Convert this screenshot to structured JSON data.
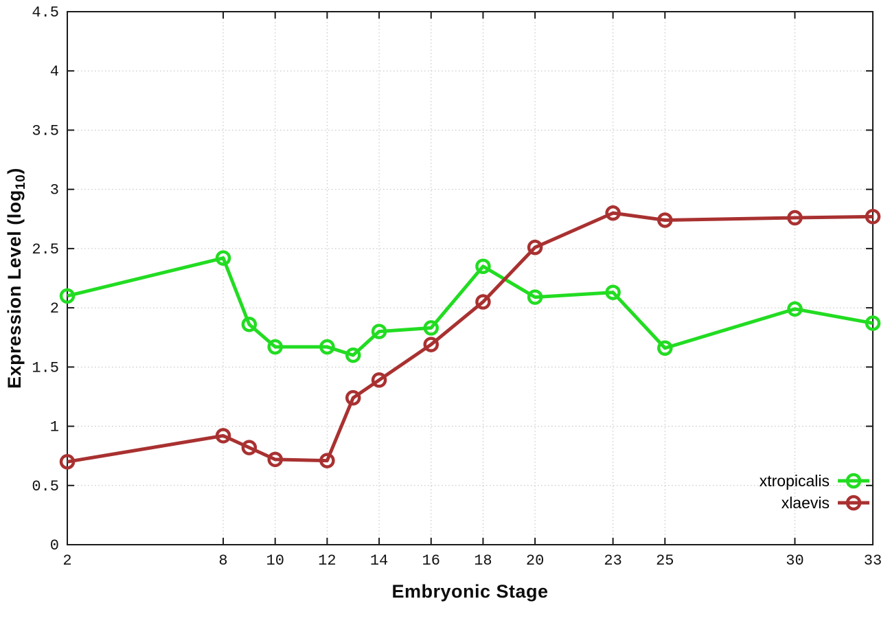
{
  "figure": {
    "background": "#ffffff",
    "text_color": "#0d0d0d"
  },
  "chart_data": {
    "type": "line",
    "title": "",
    "xlabel": "Embryonic Stage",
    "ylabel": "Expression Level (log10)",
    "ylabel_parts": {
      "main": "Expression Level (log",
      "sub": "10",
      "close": ")"
    },
    "xlim": [
      2,
      33
    ],
    "ylim": [
      0,
      4.5
    ],
    "x_ticks": [
      2,
      8,
      10,
      12,
      14,
      16,
      18,
      20,
      23,
      25,
      30,
      33
    ],
    "x_tick_labels": [
      "2",
      "8",
      "10",
      "12",
      "14",
      "16",
      "18",
      "20",
      "23",
      "25",
      "30",
      "33"
    ],
    "y_ticks": [
      0,
      0.5,
      1,
      1.5,
      2,
      2.5,
      3,
      3.5,
      4,
      4.5
    ],
    "y_tick_labels": [
      "0",
      "0.5",
      "1",
      "1.5",
      "2",
      "2.5",
      "3",
      "3.5",
      "4",
      "4.5"
    ],
    "grid": true,
    "grid_style": "dotted",
    "grid_color": "#bdbdbd",
    "axis_color": "#1a1a1a",
    "legend_position": "bottom-right",
    "marker": "open-circle",
    "x": [
      2,
      8,
      9,
      10,
      12,
      13,
      14,
      16,
      18,
      20,
      23,
      25,
      30,
      33
    ],
    "series": [
      {
        "name": "xtropicalis",
        "color": "#22DC22",
        "x": [
          2,
          8,
          9,
          10,
          12,
          13,
          14,
          16,
          18,
          20,
          23,
          25,
          30,
          33
        ],
        "y": [
          2.1,
          2.42,
          1.86,
          1.67,
          1.67,
          1.6,
          1.8,
          1.83,
          2.35,
          2.09,
          2.13,
          1.66,
          1.99,
          1.87
        ]
      },
      {
        "name": "xlaevis",
        "color": "#A93131",
        "x": [
          2,
          8,
          9,
          10,
          12,
          13,
          14,
          16,
          18,
          20,
          23,
          25,
          30,
          33
        ],
        "y": [
          0.7,
          0.92,
          0.82,
          0.72,
          0.71,
          1.24,
          1.39,
          1.69,
          2.05,
          2.51,
          2.8,
          2.74,
          2.76,
          2.77
        ]
      }
    ]
  }
}
